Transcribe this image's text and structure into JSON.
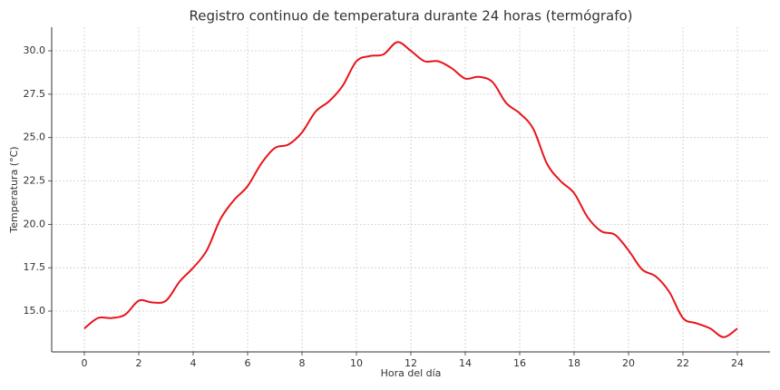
{
  "chart_data": {
    "type": "line",
    "title": "Registro continuo de temperatura durante 24 horas (termógrafo)",
    "x_label": "Hora del día",
    "y_label": "Temperatura (°C)",
    "x": [
      0,
      0.5,
      1,
      1.5,
      2,
      2.5,
      3,
      3.5,
      4,
      4.5,
      5,
      5.5,
      6,
      6.5,
      7,
      7.5,
      8,
      8.5,
      9,
      9.5,
      10,
      10.5,
      11,
      11.5,
      12,
      12.5,
      13,
      13.5,
      14,
      14.5,
      15,
      15.5,
      16,
      16.5,
      17,
      17.5,
      18,
      18.5,
      19,
      19.5,
      20,
      20.5,
      21,
      21.5,
      22,
      22.5,
      23,
      23.5,
      24
    ],
    "series": [
      {
        "name": "Temperatura",
        "color": "#e8141b",
        "values": [
          14.0,
          14.6,
          14.6,
          14.8,
          15.6,
          15.5,
          15.6,
          16.7,
          17.5,
          18.5,
          20.3,
          21.4,
          22.2,
          23.5,
          24.4,
          24.6,
          25.3,
          26.5,
          27.1,
          28.0,
          29.4,
          29.7,
          29.8,
          30.5,
          30.0,
          29.4,
          29.4,
          29.0,
          28.4,
          28.5,
          28.2,
          27.0,
          26.4,
          25.5,
          23.5,
          22.5,
          21.8,
          20.4,
          19.6,
          19.4,
          18.5,
          17.4,
          17.0,
          16.1,
          14.6,
          14.3,
          14.0,
          13.5,
          14.0
        ]
      }
    ],
    "xlim": [
      -1.2,
      25.2
    ],
    "ylim": [
      12.65,
      31.36
    ],
    "xticks": [
      0,
      2,
      4,
      6,
      8,
      10,
      12,
      14,
      16,
      18,
      20,
      22,
      24
    ],
    "yticks": [
      {
        "value": 15,
        "label": "15.0"
      },
      {
        "value": 17.5,
        "label": "17.5"
      },
      {
        "value": 20,
        "label": "20.0"
      },
      {
        "value": 22.5,
        "label": "22.5"
      },
      {
        "value": 25,
        "label": "25.0"
      },
      {
        "value": 27.5,
        "label": "27.5"
      },
      {
        "value": 30,
        "label": "30.0"
      }
    ],
    "grid": true
  }
}
